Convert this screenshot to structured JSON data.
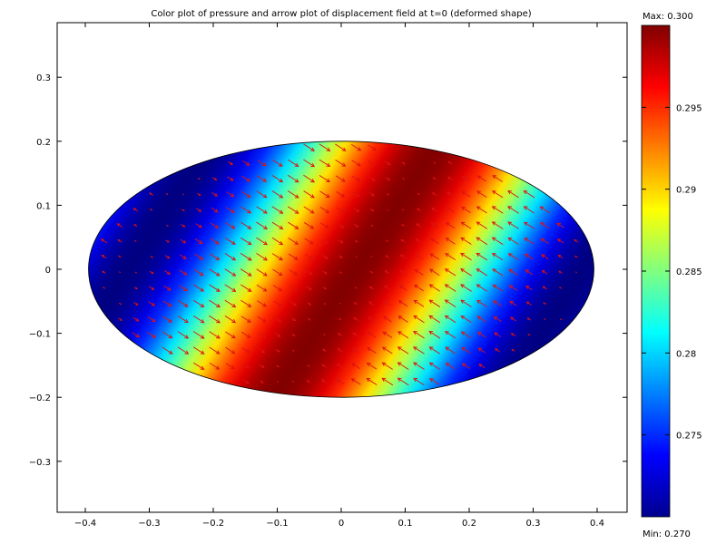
{
  "chart_data": {
    "type": "heatmap",
    "title": "Color plot of pressure and arrow plot of displacement field at t=0 (deformed shape)",
    "xlabel": "",
    "ylabel": "",
    "xlim": [
      -0.45,
      0.45
    ],
    "ylim": [
      -0.38,
      0.38
    ],
    "x_ticks": [
      {
        "value": -0.4,
        "label": "−0.4"
      },
      {
        "value": -0.3,
        "label": "−0.3"
      },
      {
        "value": -0.2,
        "label": "−0.2"
      },
      {
        "value": -0.1,
        "label": "−0.1"
      },
      {
        "value": 0,
        "label": "0"
      },
      {
        "value": 0.1,
        "label": "0.1"
      },
      {
        "value": 0.2,
        "label": "0.2"
      },
      {
        "value": 0.3,
        "label": "0.3"
      },
      {
        "value": 0.4,
        "label": "0.4"
      }
    ],
    "y_ticks": [
      {
        "value": 0.3,
        "label": "0.3"
      },
      {
        "value": 0.2,
        "label": "0.2"
      },
      {
        "value": 0.1,
        "label": "0.1"
      },
      {
        "value": 0,
        "label": "0"
      },
      {
        "value": -0.1,
        "label": "−0.1"
      },
      {
        "value": -0.2,
        "label": "−0.2"
      },
      {
        "value": -0.3,
        "label": "−0.3"
      }
    ],
    "domain": {
      "shape": "ellipse",
      "center": [
        0,
        0
      ],
      "semi_axes": [
        0.395,
        0.2
      ]
    },
    "field": {
      "name": "pressure",
      "wave_direction": [
        0.84,
        -0.54
      ],
      "peak_offset": 0.02,
      "wavelength": 0.6,
      "min": 0.27,
      "max": 0.3
    },
    "arrows": {
      "name": "displacement",
      "color": "#dd1111",
      "grid_dx": 0.0246,
      "grid_dy": 0.0244
    },
    "colorbar": {
      "max_label": "Max: 0.300",
      "min_label": "Min: 0.270",
      "ticks": [
        {
          "value": 0.295,
          "label": "0.295"
        },
        {
          "value": 0.29,
          "label": "0.29"
        },
        {
          "value": 0.285,
          "label": "0.285"
        },
        {
          "value": 0.28,
          "label": "0.28"
        },
        {
          "value": 0.275,
          "label": "0.275"
        }
      ]
    },
    "grid": false,
    "colormap": "jet"
  }
}
